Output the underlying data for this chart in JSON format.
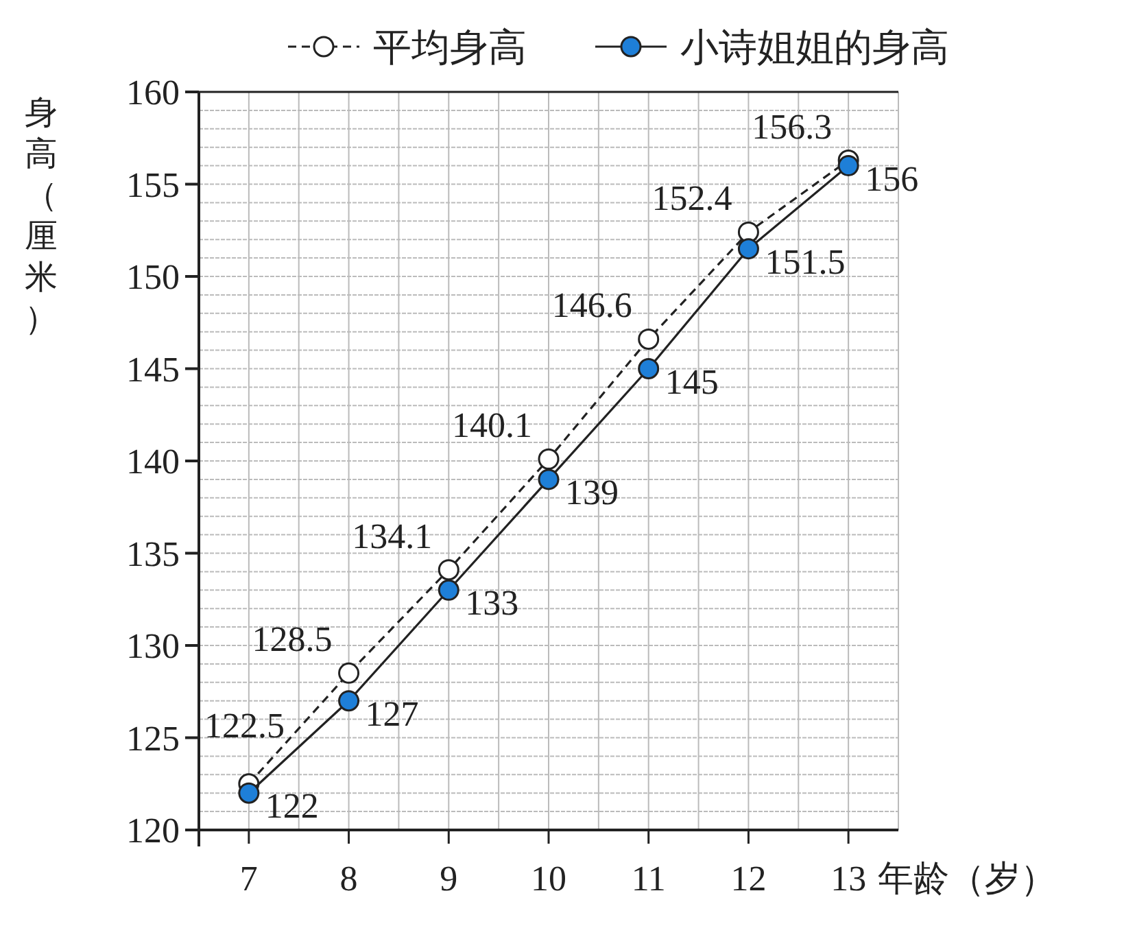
{
  "chart_data": {
    "type": "line",
    "xlabel": "年龄（岁）",
    "ylabel": "身高（厘米）",
    "x": [
      7,
      8,
      9,
      10,
      11,
      12,
      13
    ],
    "xlim": [
      6.5,
      13.5
    ],
    "xticks": [
      7,
      8,
      9,
      10,
      11,
      12,
      13
    ],
    "ylim": [
      120,
      160
    ],
    "yticks": [
      120,
      125,
      130,
      135,
      140,
      145,
      150,
      155,
      160
    ],
    "grid": true,
    "legend": "top",
    "marker": "circle",
    "data_labels": true,
    "series": [
      {
        "name": "平均身高",
        "color": "#ffffff",
        "line_style": "dashed",
        "values": [
          122.5,
          128.5,
          134.1,
          140.1,
          146.6,
          152.4,
          156.3
        ]
      },
      {
        "name": "小诗姐姐的身高",
        "color": "#1e7fd8",
        "line_style": "solid",
        "values": [
          122,
          127,
          133,
          139,
          145,
          151.5,
          156
        ]
      }
    ]
  }
}
